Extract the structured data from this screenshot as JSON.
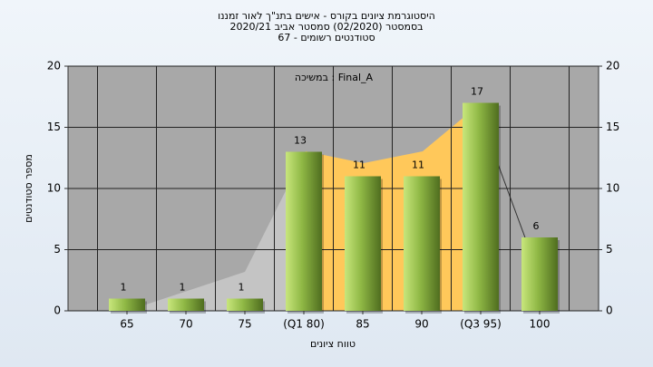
{
  "chart_data": {
    "type": "bar",
    "title": [
      "היסטוגרמת ציונים בקורס - אישים בתנ\"ך לאור זמננו",
      "בסמסטר  (02/2020)  סמסטר אביב 2020/21",
      "סטודנטים רשומים - 67"
    ],
    "legend_text": "במשיכה : Final_A",
    "x_label": "טווח ציונים",
    "y_label": "מספר סטודנטים",
    "categories": [
      "65",
      "70",
      "75",
      "(Q1 80)",
      "85",
      "90",
      "(Q3 95)",
      "100"
    ],
    "values": [
      1,
      1,
      1,
      13,
      11,
      11,
      17,
      6
    ],
    "color": "#8fb845",
    "ylim": [
      0,
      20
    ],
    "yticks": [
      0,
      5,
      10,
      15,
      20
    ],
    "grid": true
  }
}
